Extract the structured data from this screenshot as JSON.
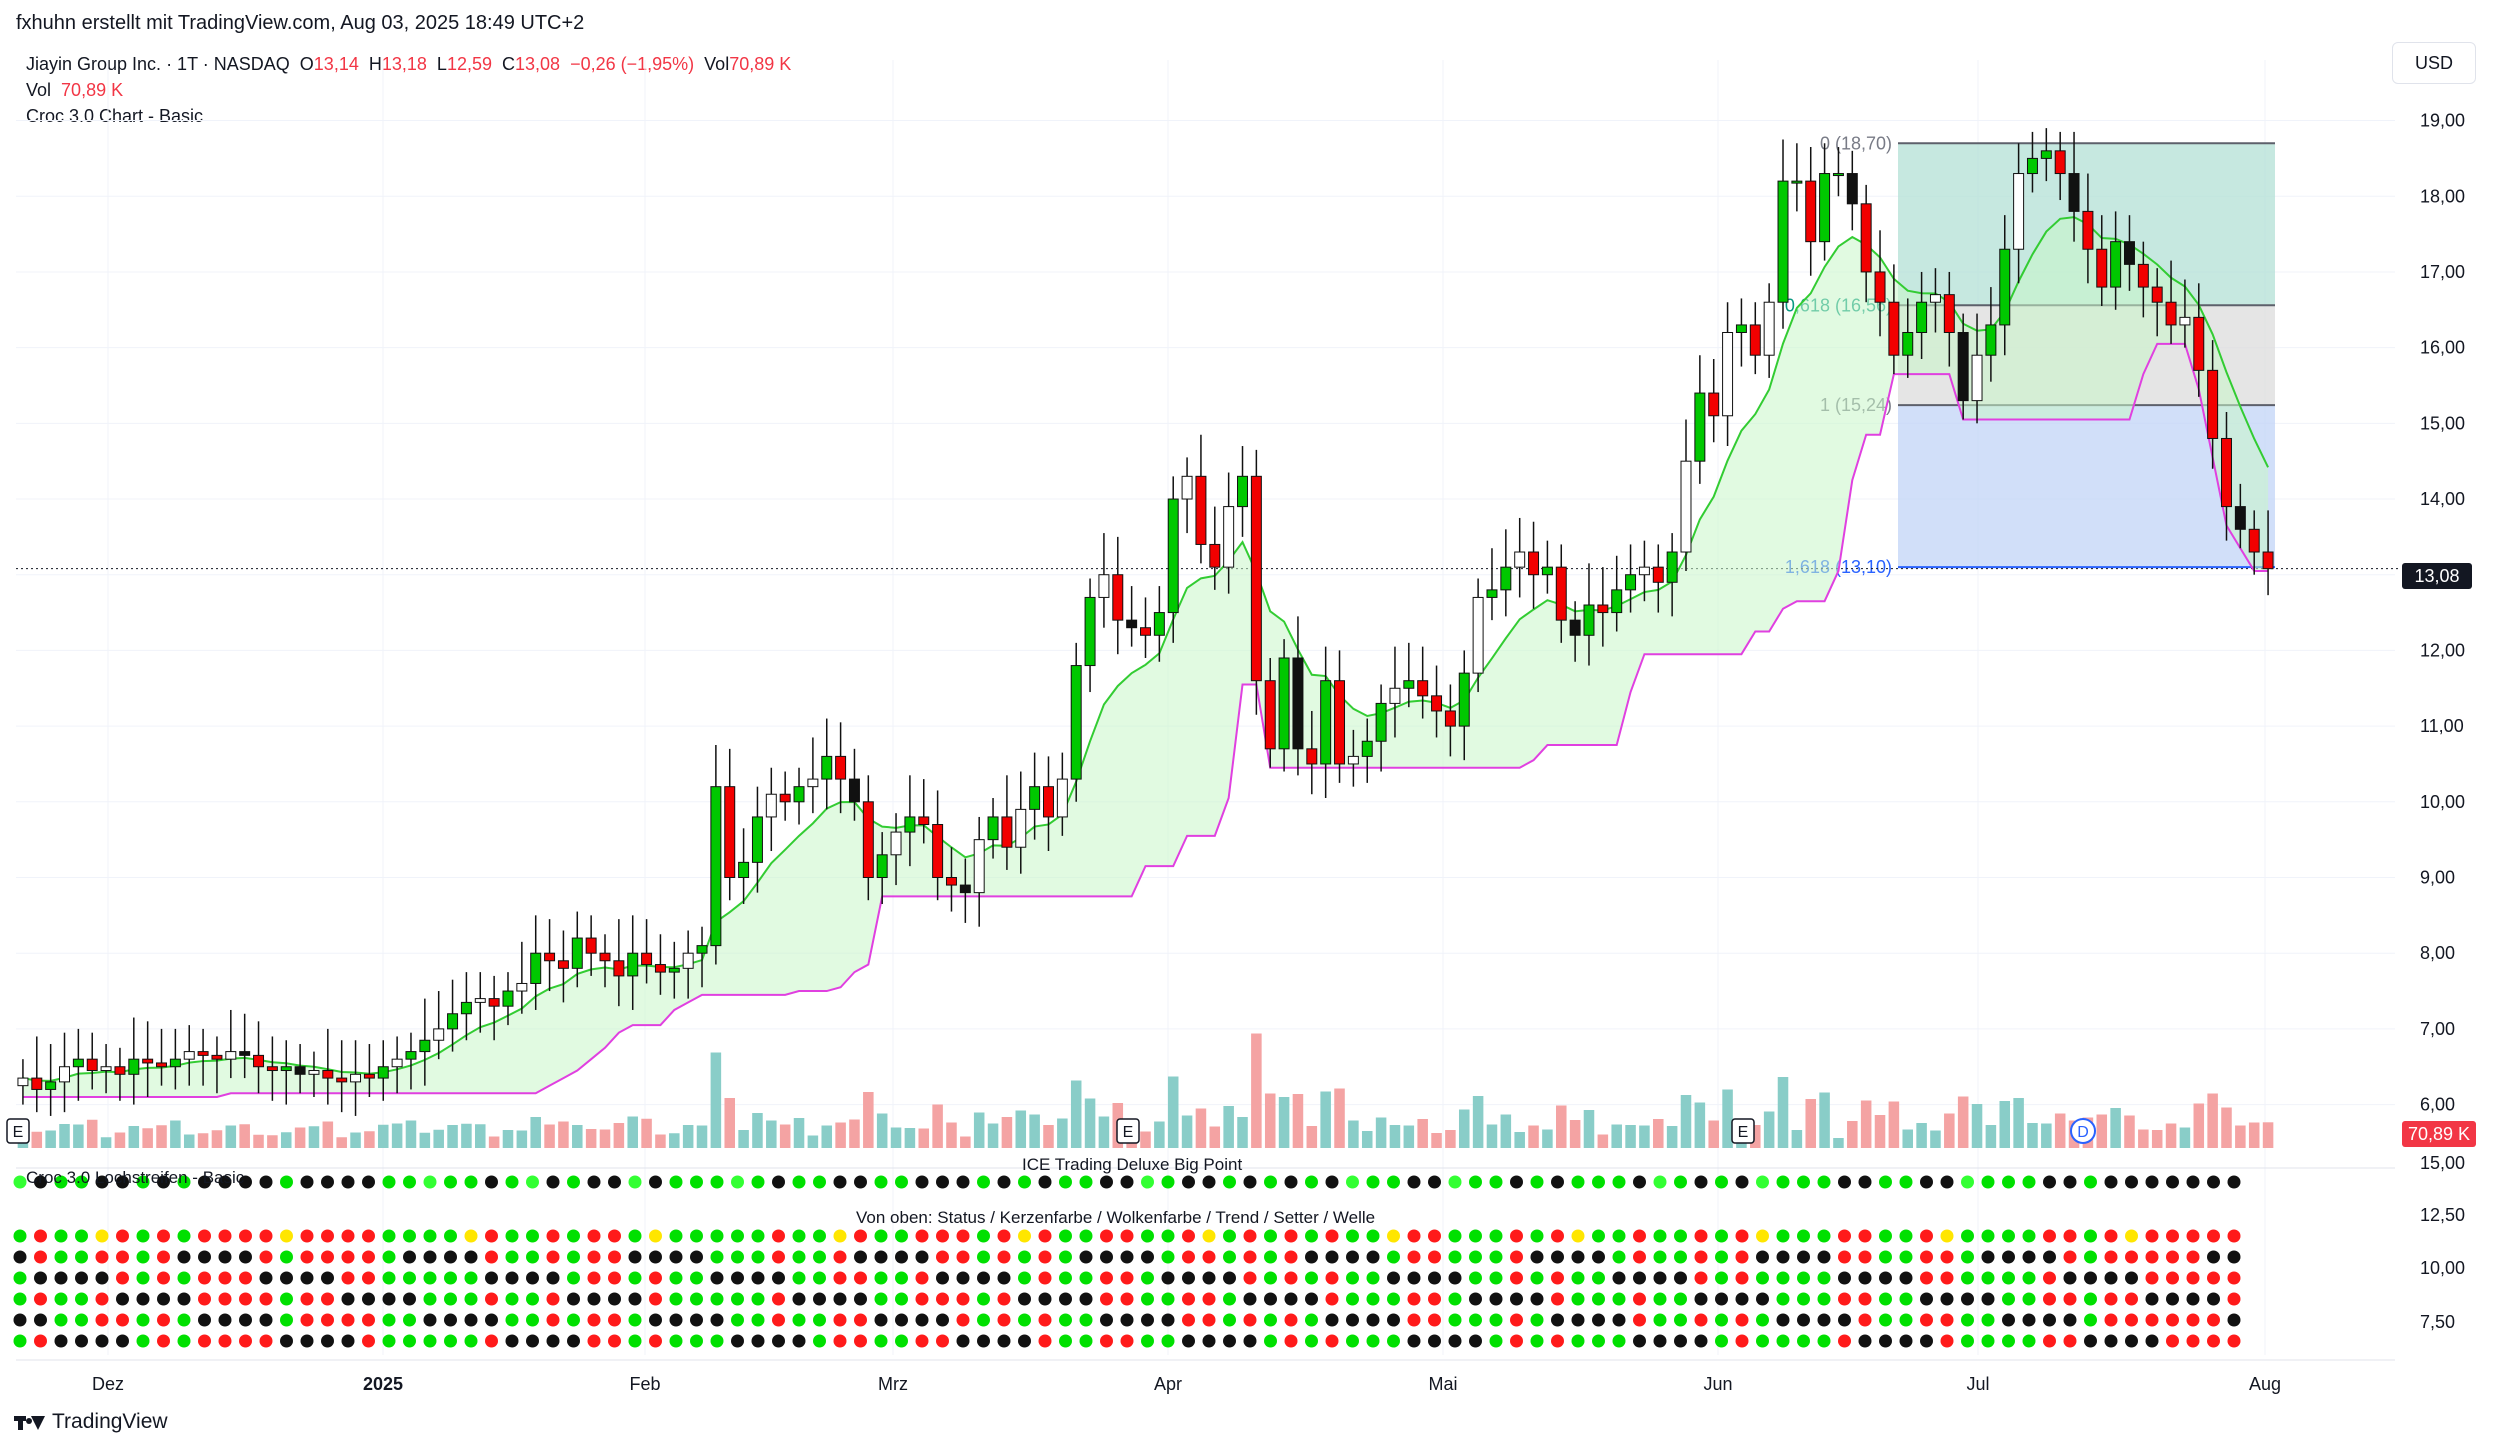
{
  "header": {
    "credit": "fxhuhn erstellt mit TradingView.com, Aug 03, 2025 18:49 UTC+2",
    "symbol_line": "Jiayin Group Inc. · 1T · NASDAQ",
    "o_label": "O",
    "o_val": "13,14",
    "h_label": "H",
    "h_val": "13,18",
    "l_label": "L",
    "l_val": "12,59",
    "c_label": "C",
    "c_val": "13,08",
    "change": "−0,26 (−1,95%)",
    "vol_label": "Vol",
    "vol_val": "70,89 K",
    "vol_line_label": "Vol",
    "vol_line_val": "70,89 K",
    "indicator": "Croc 3.0 Chart - Basic"
  },
  "currency": "USD",
  "last_price_tag": "13,08",
  "volume_tag": "70,89 K",
  "fib_labels": [
    "0 (18,70)",
    "0,618 (16,56)",
    "1 (15,24)",
    "1,618 (13,10)"
  ],
  "event_markers": [
    "E",
    "E",
    "E",
    "D"
  ],
  "panes": {
    "lochstreifen_title": "Croc 3.0 Lochstreifen - Basic",
    "bigpoint_title": "ICE Trading Deluxe Big Point",
    "rows_title": "Von oben: Status / Kerzenfarbe / Wolkenfarbe / Trend / Setter / Welle",
    "scale_labels": [
      "15,00",
      "12,50",
      "10,00",
      "7,50"
    ]
  },
  "colors": {
    "up": "#00c800",
    "down": "#f20000",
    "cloud": "#c8f5c8",
    "stop": "#e040e0",
    "vol_up": "#89cdc8",
    "vol_down": "#f4a3a3",
    "fib_teal": "#b3e0d6",
    "fib_grey": "#dcdcdc",
    "fib_blue": "#c2d4f7"
  },
  "chart_data": {
    "type": "candlestick",
    "x_ticks": [
      "Dez",
      "2025",
      "Feb",
      "Mrz",
      "Apr",
      "Mai",
      "Jun",
      "Jul",
      "Aug"
    ],
    "y_ticks": [
      "19,00",
      "18,00",
      "17,00",
      "16,00",
      "15,00",
      "14,00",
      "13,00",
      "12,00",
      "11,00",
      "10,00",
      "9,00",
      "8,00",
      "7,00",
      "6,00"
    ],
    "ylim": [
      5.4,
      19.8
    ],
    "fib_levels": [
      18.7,
      16.56,
      15.24,
      13.1
    ],
    "last_price": 13.08,
    "close": [
      6.35,
      6.2,
      6.3,
      6.5,
      6.6,
      6.45,
      6.5,
      6.4,
      6.6,
      6.55,
      6.5,
      6.6,
      6.7,
      6.65,
      6.6,
      6.7,
      6.65,
      6.5,
      6.45,
      6.5,
      6.4,
      6.45,
      6.35,
      6.3,
      6.4,
      6.35,
      6.5,
      6.6,
      6.7,
      6.85,
      7.0,
      7.2,
      7.35,
      7.4,
      7.3,
      7.5,
      7.6,
      8.0,
      7.9,
      7.8,
      8.2,
      8.0,
      7.9,
      7.7,
      8.0,
      7.85,
      7.75,
      7.8,
      8.0,
      8.1,
      10.2,
      9.0,
      9.2,
      9.8,
      10.1,
      10.0,
      10.2,
      10.3,
      10.6,
      10.3,
      10.0,
      9.0,
      9.3,
      9.6,
      9.8,
      9.7,
      9.0,
      8.9,
      8.8,
      9.5,
      9.8,
      9.4,
      9.9,
      10.2,
      9.8,
      10.3,
      11.8,
      12.7,
      13.0,
      12.4,
      12.3,
      12.2,
      12.5,
      14.0,
      14.3,
      13.4,
      13.1,
      13.9,
      14.3,
      11.6,
      10.7,
      11.9,
      10.7,
      10.5,
      11.6,
      10.5,
      10.6,
      10.8,
      11.3,
      11.5,
      11.6,
      11.4,
      11.2,
      11.0,
      11.7,
      12.7,
      12.8,
      13.1,
      13.3,
      13.0,
      13.1,
      12.4,
      12.2,
      12.6,
      12.5,
      12.8,
      13.0,
      13.1,
      12.9,
      13.3,
      14.5,
      15.4,
      15.1,
      16.2,
      16.3,
      15.9,
      16.6,
      18.2,
      18.2,
      17.4,
      18.3,
      18.3,
      17.9,
      17.0,
      16.6,
      15.9,
      16.2,
      16.6,
      16.7,
      16.2,
      15.3,
      15.9,
      16.3,
      17.3,
      18.3,
      18.5,
      18.6,
      18.3,
      17.8,
      17.3,
      16.8,
      17.4,
      17.1,
      16.8,
      16.6,
      16.3,
      16.4,
      15.7,
      14.8,
      13.9,
      13.6,
      13.3,
      13.08
    ]
  }
}
